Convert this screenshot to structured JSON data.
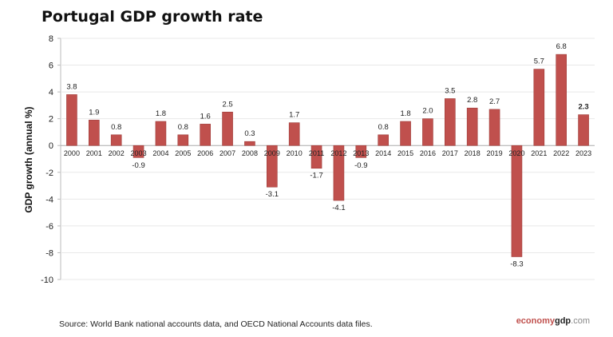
{
  "chart_data": {
    "type": "bar",
    "title": "Portugal GDP growth rate",
    "xlabel": "",
    "ylabel": "GDP growth (annual %)",
    "ylim": [
      -10,
      8
    ],
    "yticks": [
      8,
      6,
      4,
      2,
      0,
      -2,
      -4,
      -6,
      -8,
      -10
    ],
    "grid": true,
    "categories": [
      "2000",
      "2001",
      "2002",
      "2003",
      "2004",
      "2005",
      "2006",
      "2007",
      "2008",
      "2009",
      "2010",
      "2011",
      "2012",
      "2013",
      "2014",
      "2015",
      "2016",
      "2017",
      "2018",
      "2019",
      "2020",
      "2021",
      "2022",
      "2023"
    ],
    "values": [
      3.8,
      1.9,
      0.8,
      -0.9,
      1.8,
      0.8,
      1.6,
      2.5,
      0.3,
      -3.1,
      1.7,
      -1.7,
      -4.1,
      -0.9,
      0.8,
      1.8,
      2.0,
      3.5,
      2.8,
      2.7,
      -8.3,
      5.7,
      6.8,
      2.3
    ],
    "data_labels": [
      "3.8",
      "1.9",
      "0.8",
      "-0.9",
      "1.8",
      "0.8",
      "1.6",
      "2.5",
      "0.3",
      "-3.1",
      "1.7",
      "-1.7",
      "-4.1",
      "-0.9",
      "0.8",
      "1.8",
      "2.0",
      "3.5",
      "2.8",
      "2.7",
      "-8.3",
      "5.7",
      "6.8",
      "2.3"
    ],
    "bar_color": "#c0504d"
  },
  "source": "Source:  World Bank national accounts data, and OECD National Accounts data files.",
  "logo": {
    "part1": "economy",
    "part2": "gdp",
    "part3": ".com"
  }
}
